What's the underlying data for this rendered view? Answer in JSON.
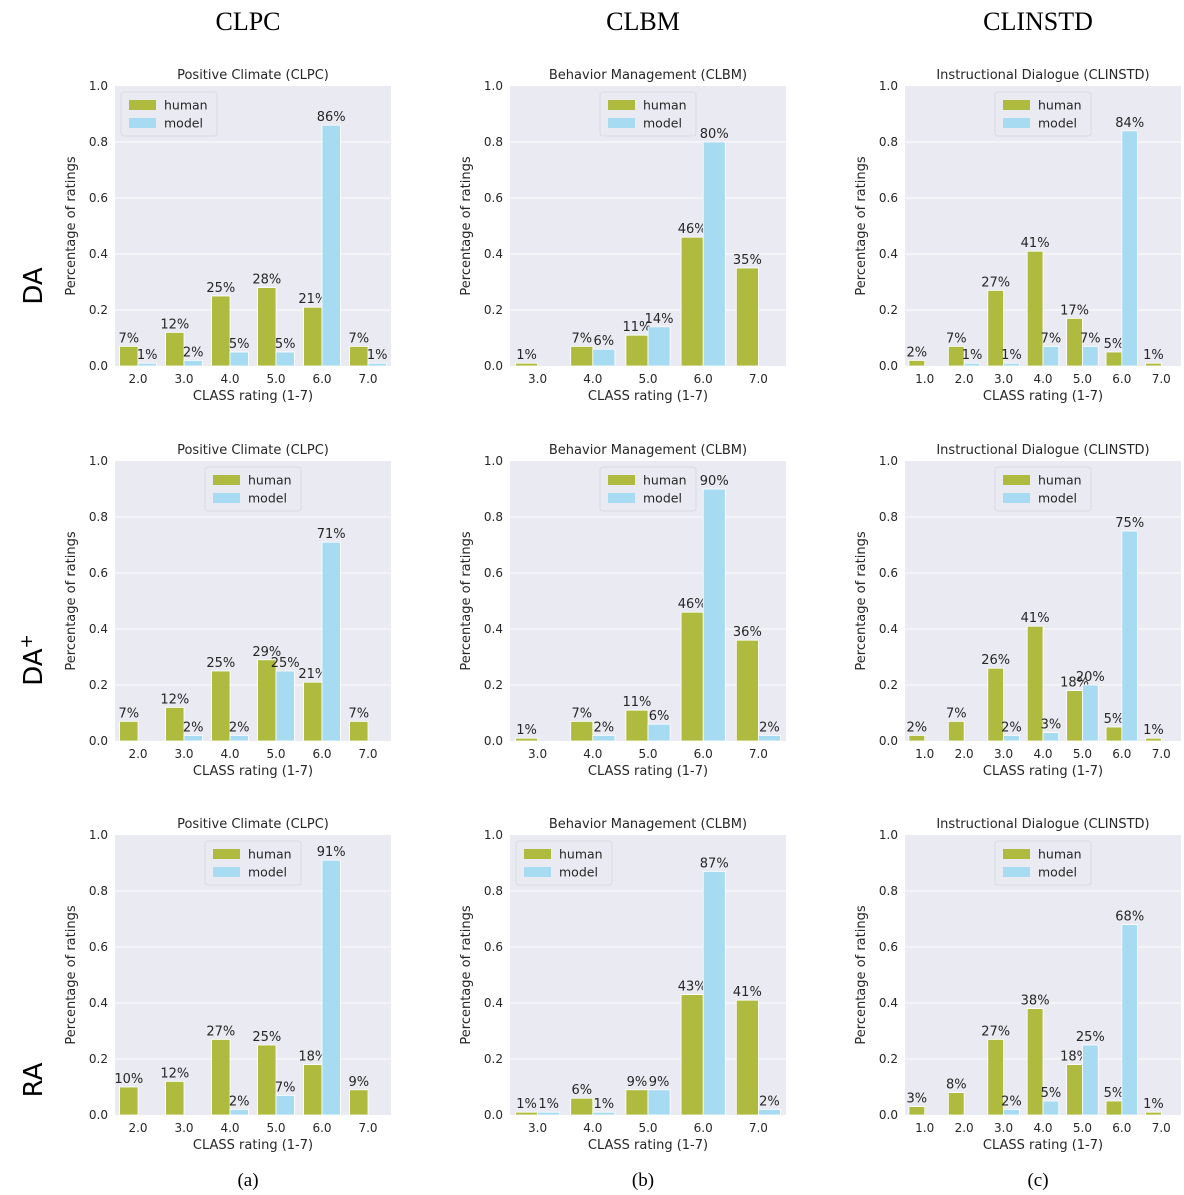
{
  "figure": {
    "column_titles": [
      "CLPC",
      "CLBM",
      "CLINSTD"
    ],
    "row_labels": [
      "DA",
      "DA",
      "RA"
    ],
    "row_label_sup": [
      "",
      "+",
      ""
    ],
    "sublabels": [
      "(a)",
      "(b)",
      "(c)"
    ]
  },
  "colors": {
    "human": "#aebb3f",
    "model": "#a6dbf2",
    "panel_bg": "#eaeaf2",
    "grid": "#ffffff"
  },
  "chart_data": [
    {
      "type": "bar",
      "title": "Positive Climate (CLPC)",
      "xlabel": "CLASS rating (1-7)",
      "ylabel": "Percentage of ratings",
      "ylim": [
        0,
        1
      ],
      "yticks": [
        "0.0",
        "0.2",
        "0.4",
        "0.6",
        "0.8",
        "1.0"
      ],
      "categories": [
        "2.0",
        "3.0",
        "4.0",
        "5.0",
        "6.0",
        "7.0"
      ],
      "legend": "upper-left",
      "series": [
        {
          "name": "human",
          "values": [
            0.07,
            0.12,
            0.25,
            0.28,
            0.21,
            0.07
          ],
          "labels": [
            "7%",
            "12%",
            "25%",
            "28%",
            "21%",
            "7%"
          ]
        },
        {
          "name": "model",
          "values": [
            0.01,
            0.02,
            0.05,
            0.05,
            0.86,
            0.01
          ],
          "labels": [
            "1%",
            "2%",
            "5%",
            "5%",
            "86%",
            "1%"
          ]
        }
      ]
    },
    {
      "type": "bar",
      "title": "Behavior Management (CLBM)",
      "xlabel": "CLASS rating (1-7)",
      "ylabel": "Percentage of ratings",
      "ylim": [
        0,
        1
      ],
      "yticks": [
        "0.0",
        "0.2",
        "0.4",
        "0.6",
        "0.8",
        "1.0"
      ],
      "categories": [
        "3.0",
        "4.0",
        "5.0",
        "6.0",
        "7.0"
      ],
      "legend": "upper-center",
      "series": [
        {
          "name": "human",
          "values": [
            0.01,
            0.07,
            0.11,
            0.46,
            0.35
          ],
          "labels": [
            "1%",
            "7%",
            "11%",
            "46%",
            "35%"
          ]
        },
        {
          "name": "model",
          "values": [
            0,
            0.06,
            0.14,
            0.8,
            0
          ],
          "labels": [
            "",
            "6%",
            "14%",
            "80%",
            ""
          ]
        }
      ]
    },
    {
      "type": "bar",
      "title": "Instructional Dialogue (CLINSTD)",
      "xlabel": "CLASS rating (1-7)",
      "ylabel": "Percentage of ratings",
      "ylim": [
        0,
        1
      ],
      "yticks": [
        "0.0",
        "0.2",
        "0.4",
        "0.6",
        "0.8",
        "1.0"
      ],
      "categories": [
        "1.0",
        "2.0",
        "3.0",
        "4.0",
        "5.0",
        "6.0",
        "7.0"
      ],
      "legend": "upper-center",
      "series": [
        {
          "name": "human",
          "values": [
            0.02,
            0.07,
            0.27,
            0.41,
            0.17,
            0.05,
            0.01
          ],
          "labels": [
            "2%",
            "7%",
            "27%",
            "41%",
            "17%",
            "5%",
            "1%"
          ]
        },
        {
          "name": "model",
          "values": [
            0,
            0.01,
            0.01,
            0.07,
            0.07,
            0.84,
            0
          ],
          "labels": [
            "",
            "1%",
            "1%",
            "7%",
            "7%",
            "84%",
            ""
          ]
        }
      ]
    },
    {
      "type": "bar",
      "title": "Positive Climate (CLPC)",
      "xlabel": "CLASS rating (1-7)",
      "ylabel": "Percentage of ratings",
      "ylim": [
        0,
        1
      ],
      "yticks": [
        "0.0",
        "0.2",
        "0.4",
        "0.6",
        "0.8",
        "1.0"
      ],
      "categories": [
        "2.0",
        "3.0",
        "4.0",
        "5.0",
        "6.0",
        "7.0"
      ],
      "legend": "upper-center",
      "series": [
        {
          "name": "human",
          "values": [
            0.07,
            0.12,
            0.25,
            0.29,
            0.21,
            0.07
          ],
          "labels": [
            "7%",
            "12%",
            "25%",
            "29%",
            "21%",
            "7%"
          ]
        },
        {
          "name": "model",
          "values": [
            0,
            0.02,
            0.02,
            0.25,
            0.71,
            0
          ],
          "labels": [
            "",
            "2%",
            "2%",
            "25%",
            "71%",
            ""
          ]
        }
      ]
    },
    {
      "type": "bar",
      "title": "Behavior Management (CLBM)",
      "xlabel": "CLASS rating (1-7)",
      "ylabel": "Percentage of ratings",
      "ylim": [
        0,
        1
      ],
      "yticks": [
        "0.0",
        "0.2",
        "0.4",
        "0.6",
        "0.8",
        "1.0"
      ],
      "categories": [
        "3.0",
        "4.0",
        "5.0",
        "6.0",
        "7.0"
      ],
      "legend": "upper-center",
      "series": [
        {
          "name": "human",
          "values": [
            0.01,
            0.07,
            0.11,
            0.46,
            0.36
          ],
          "labels": [
            "1%",
            "7%",
            "11%",
            "46%",
            "36%"
          ]
        },
        {
          "name": "model",
          "values": [
            0,
            0.02,
            0.06,
            0.9,
            0.02
          ],
          "labels": [
            "",
            "2%",
            "6%",
            "90%",
            "2%"
          ]
        }
      ]
    },
    {
      "type": "bar",
      "title": "Instructional Dialogue (CLINSTD)",
      "xlabel": "CLASS rating (1-7)",
      "ylabel": "Percentage of ratings",
      "ylim": [
        0,
        1
      ],
      "yticks": [
        "0.0",
        "0.2",
        "0.4",
        "0.6",
        "0.8",
        "1.0"
      ],
      "categories": [
        "1.0",
        "2.0",
        "3.0",
        "4.0",
        "5.0",
        "6.0",
        "7.0"
      ],
      "legend": "upper-center",
      "series": [
        {
          "name": "human",
          "values": [
            0.02,
            0.07,
            0.26,
            0.41,
            0.18,
            0.05,
            0.01
          ],
          "labels": [
            "2%",
            "7%",
            "26%",
            "41%",
            "18%",
            "5%",
            "1%"
          ]
        },
        {
          "name": "model",
          "values": [
            0,
            0,
            0.02,
            0.03,
            0.2,
            0.75,
            0
          ],
          "labels": [
            "",
            "",
            "2%",
            "3%",
            "20%",
            "75%",
            ""
          ]
        }
      ]
    },
    {
      "type": "bar",
      "title": "Positive Climate (CLPC)",
      "xlabel": "CLASS rating (1-7)",
      "ylabel": "Percentage of ratings",
      "ylim": [
        0,
        1
      ],
      "yticks": [
        "0.0",
        "0.2",
        "0.4",
        "0.6",
        "0.8",
        "1.0"
      ],
      "categories": [
        "2.0",
        "3.0",
        "4.0",
        "5.0",
        "6.0",
        "7.0"
      ],
      "legend": "upper-center",
      "series": [
        {
          "name": "human",
          "values": [
            0.1,
            0.12,
            0.27,
            0.25,
            0.18,
            0.09
          ],
          "labels": [
            "10%",
            "12%",
            "27%",
            "25%",
            "18%",
            "9%"
          ]
        },
        {
          "name": "model",
          "values": [
            0,
            0,
            0.02,
            0.07,
            0.91,
            0
          ],
          "labels": [
            "",
            "",
            "2%",
            "7%",
            "91%",
            ""
          ]
        }
      ]
    },
    {
      "type": "bar",
      "title": "Behavior Management (CLBM)",
      "xlabel": "CLASS rating (1-7)",
      "ylabel": "Percentage of ratings",
      "ylim": [
        0,
        1
      ],
      "yticks": [
        "0.0",
        "0.2",
        "0.4",
        "0.6",
        "0.8",
        "1.0"
      ],
      "categories": [
        "3.0",
        "4.0",
        "5.0",
        "6.0",
        "7.0"
      ],
      "legend": "upper-left",
      "series": [
        {
          "name": "human",
          "values": [
            0.01,
            0.06,
            0.09,
            0.43,
            0.41
          ],
          "labels": [
            "1%",
            "6%",
            "9%",
            "43%",
            "41%"
          ]
        },
        {
          "name": "model",
          "values": [
            0.01,
            0.01,
            0.09,
            0.87,
            0.02
          ],
          "labels": [
            "1%",
            "1%",
            "9%",
            "87%",
            "2%"
          ]
        }
      ]
    },
    {
      "type": "bar",
      "title": "Instructional Dialogue (CLINSTD)",
      "xlabel": "CLASS rating (1-7)",
      "ylabel": "Percentage of ratings",
      "ylim": [
        0,
        1
      ],
      "yticks": [
        "0.0",
        "0.2",
        "0.4",
        "0.6",
        "0.8",
        "1.0"
      ],
      "categories": [
        "1.0",
        "2.0",
        "3.0",
        "4.0",
        "5.0",
        "6.0",
        "7.0"
      ],
      "legend": "upper-center",
      "series": [
        {
          "name": "human",
          "values": [
            0.03,
            0.08,
            0.27,
            0.38,
            0.18,
            0.05,
            0.01
          ],
          "labels": [
            "3%",
            "8%",
            "27%",
            "38%",
            "18%",
            "5%",
            "1%"
          ]
        },
        {
          "name": "model",
          "values": [
            0,
            0,
            0.02,
            0.05,
            0.25,
            0.68,
            0
          ],
          "labels": [
            "",
            "",
            "2%",
            "5%",
            "25%",
            "68%",
            ""
          ]
        }
      ]
    }
  ]
}
